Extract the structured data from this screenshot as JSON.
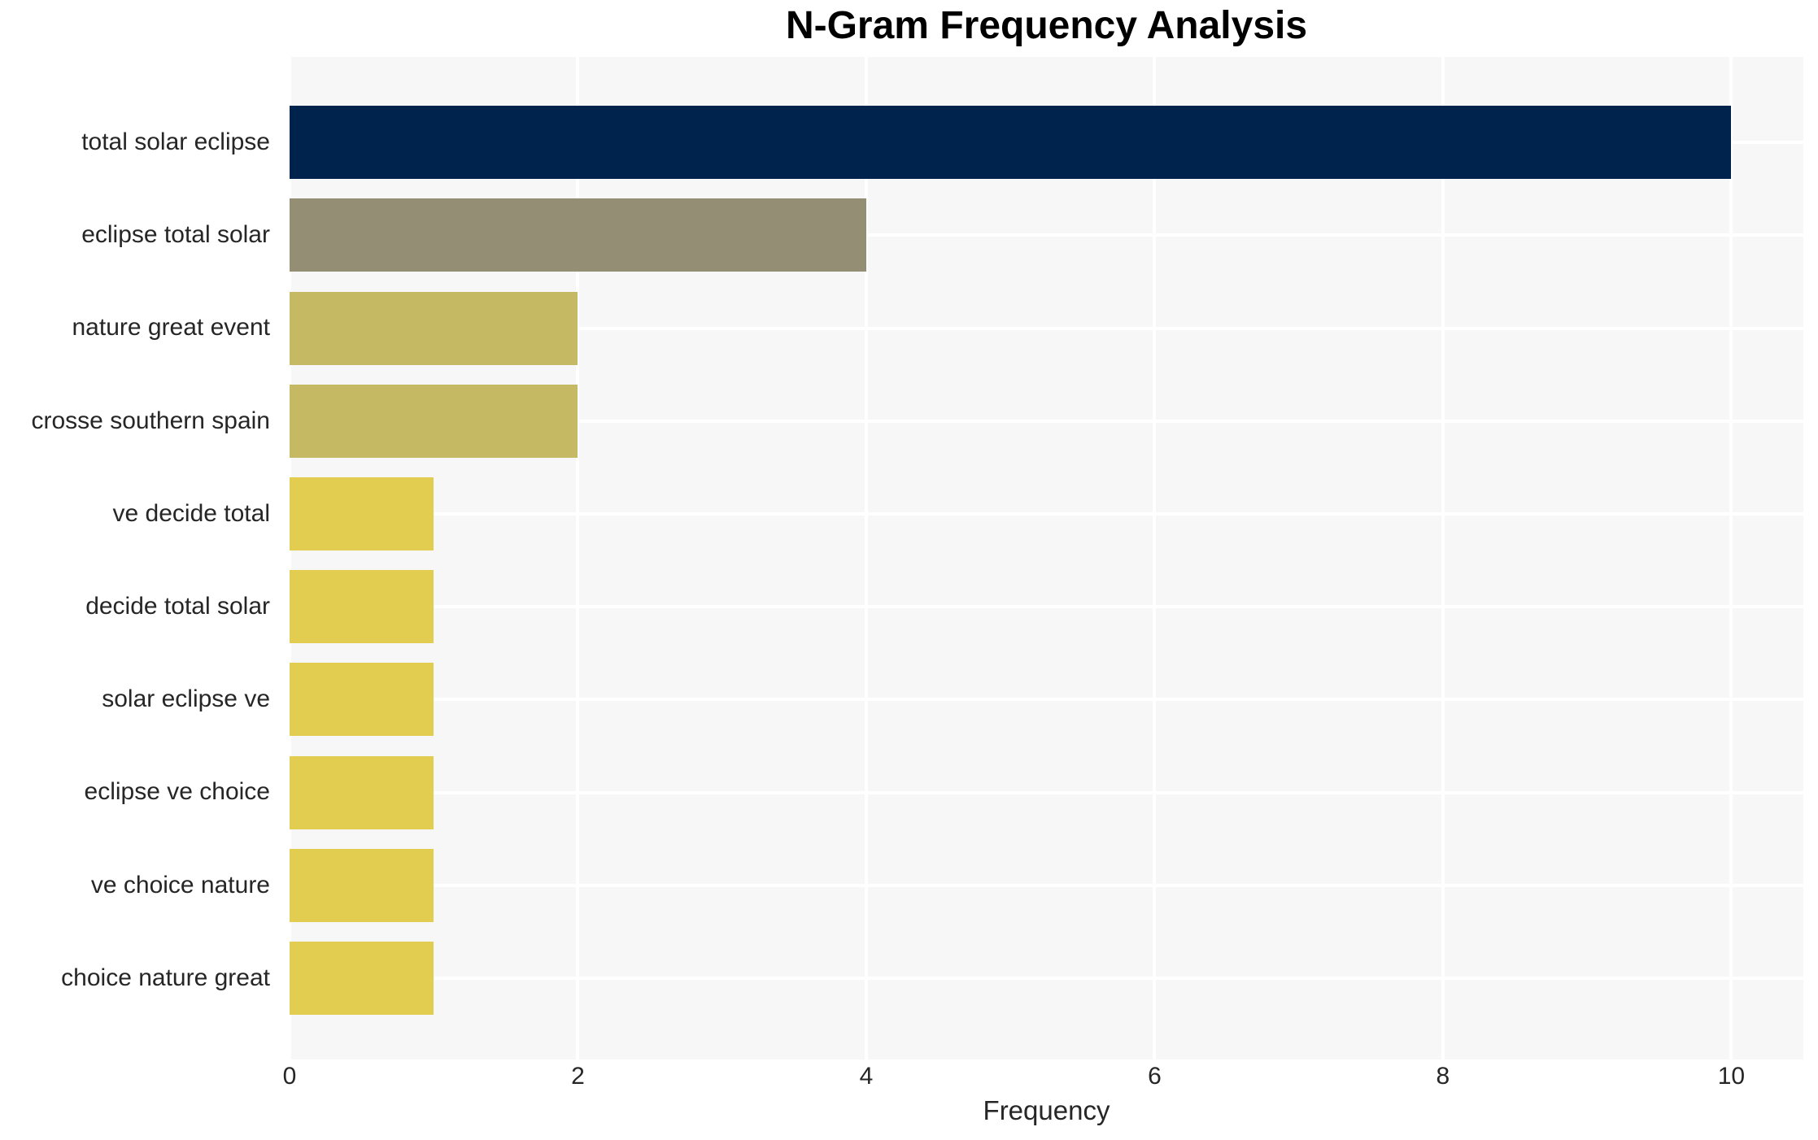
{
  "chart_data": {
    "type": "bar",
    "orientation": "horizontal",
    "title": "N-Gram Frequency Analysis",
    "xlabel": "Frequency",
    "ylabel": "",
    "categories": [
      "total solar eclipse",
      "eclipse total solar",
      "nature great event",
      "crosse southern spain",
      "ve decide total",
      "decide total solar",
      "solar eclipse ve",
      "eclipse ve choice",
      "ve choice nature",
      "choice nature great"
    ],
    "values": [
      10,
      4,
      2,
      2,
      1,
      1,
      1,
      1,
      1,
      1
    ],
    "bar_colors": [
      "#00234e",
      "#948e75",
      "#c6b963",
      "#c6b963",
      "#e3cd51",
      "#e3cd51",
      "#e3cd51",
      "#e3cd51",
      "#e3cd51",
      "#e3cd51"
    ],
    "xticks": [
      0,
      2,
      4,
      6,
      8,
      10
    ],
    "xlim": [
      0,
      10.5
    ],
    "grid": true,
    "legend": false,
    "plot_background": "#f7f7f7",
    "grid_color": "#ffffff",
    "text_color": "#262626",
    "title_color": "#000000"
  }
}
